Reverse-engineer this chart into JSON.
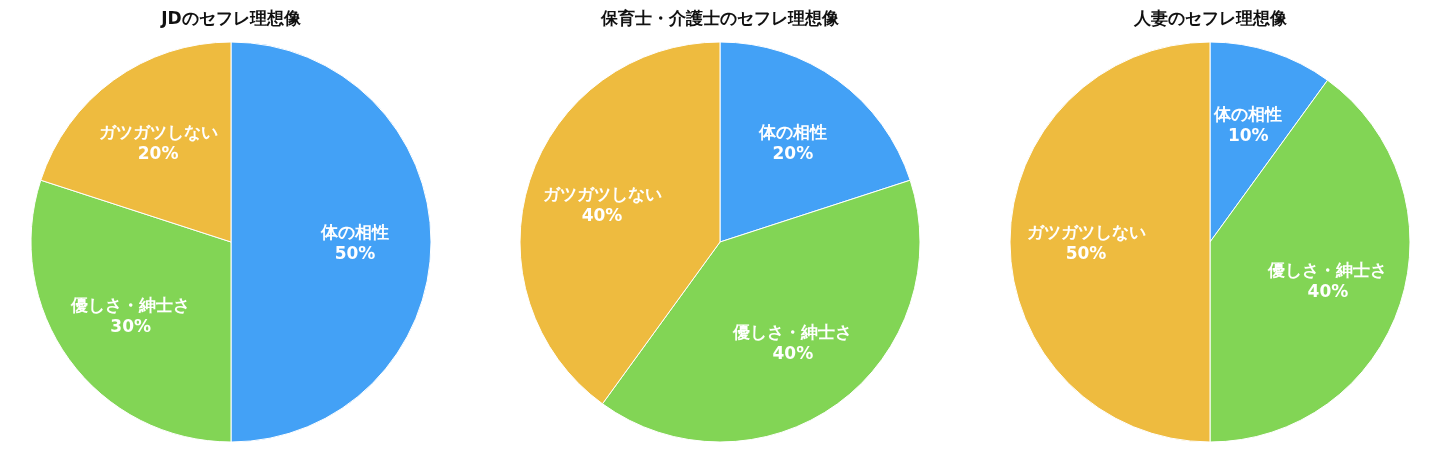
{
  "chart_data": [
    {
      "type": "pie",
      "title": "JDのセフレ理想像",
      "categories": [
        "体の相性",
        "優しさ・紳士さ",
        "ガツガツしない"
      ],
      "values": [
        50,
        30,
        20
      ],
      "value_labels": [
        "50%",
        "30%",
        "20%"
      ],
      "colors": [
        "#43a1f6",
        "#82d555",
        "#eebb3f"
      ]
    },
    {
      "type": "pie",
      "title": "保育士・介護士のセフレ理想像",
      "categories": [
        "体の相性",
        "優しさ・紳士さ",
        "ガツガツしない"
      ],
      "values": [
        20,
        40,
        40
      ],
      "value_labels": [
        "20%",
        "40%",
        "40%"
      ],
      "colors": [
        "#43a1f6",
        "#82d555",
        "#eebb3f"
      ]
    },
    {
      "type": "pie",
      "title": "人妻のセフレ理想像",
      "categories": [
        "体の相性",
        "優しさ・紳士さ",
        "ガツガツしない"
      ],
      "values": [
        10,
        40,
        50
      ],
      "value_labels": [
        "10%",
        "40%",
        "50%"
      ],
      "colors": [
        "#43a1f6",
        "#82d555",
        "#eebb3f"
      ]
    }
  ]
}
